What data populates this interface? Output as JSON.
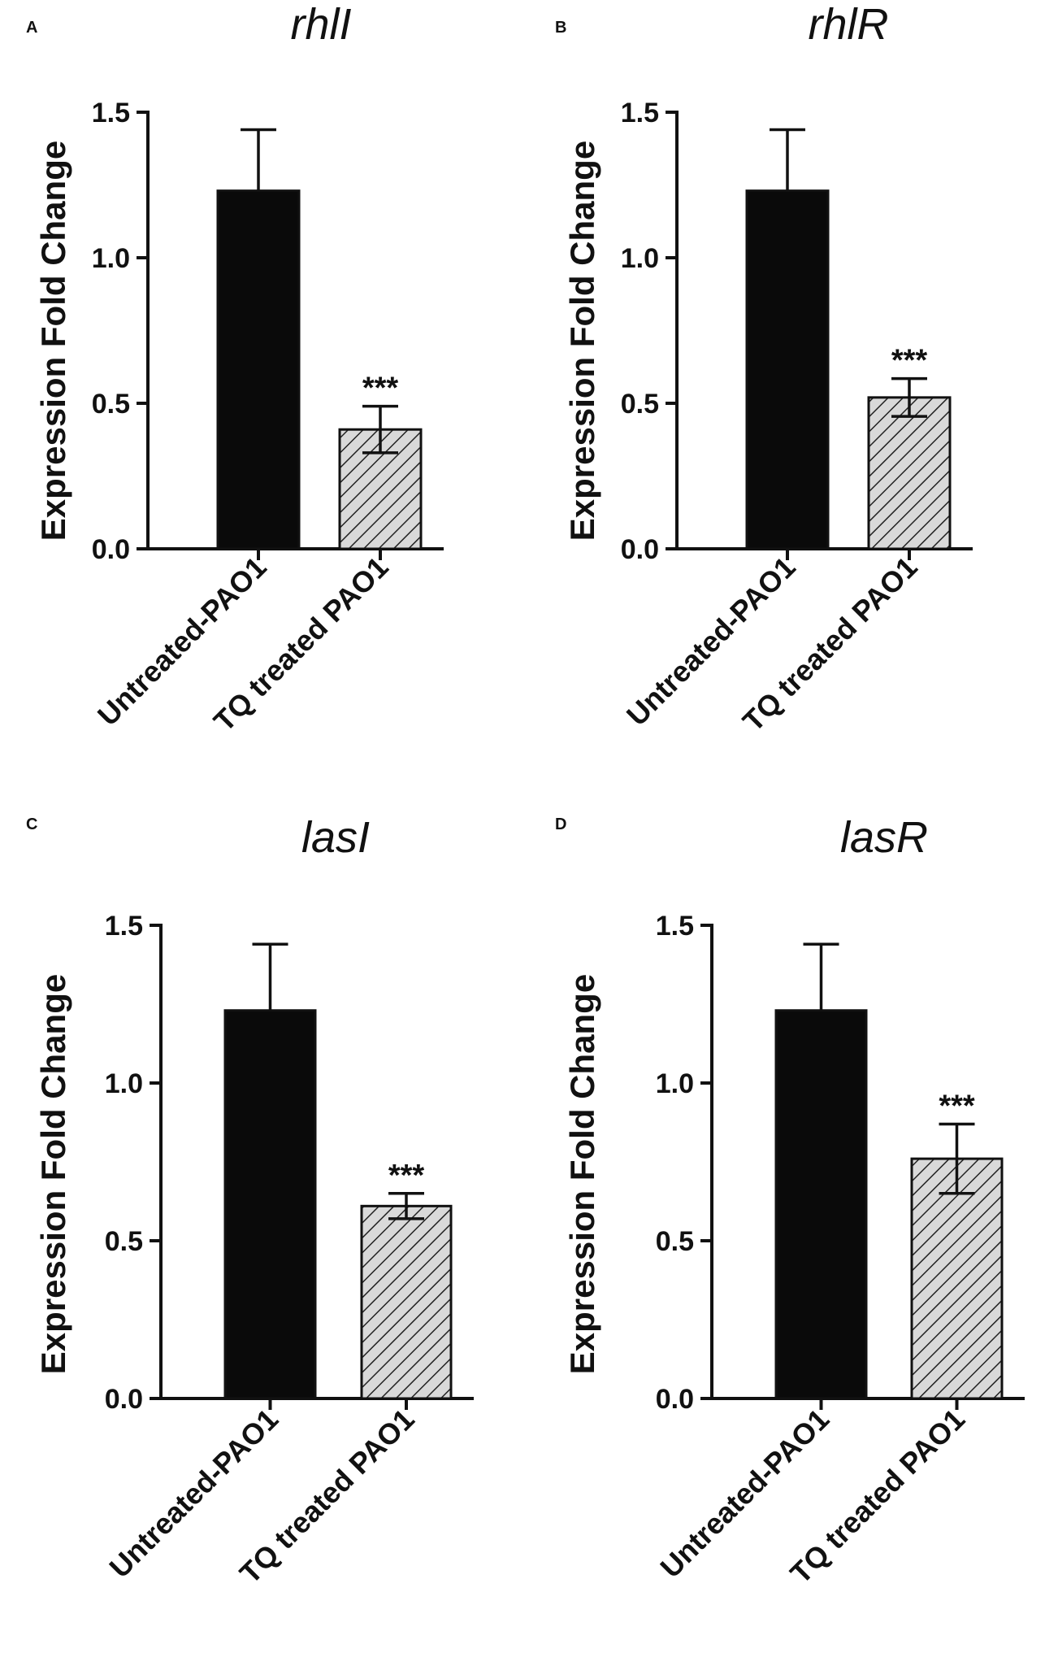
{
  "colors": {
    "untreated_fill": "#0a0a0a",
    "treated_fill": "#d9d9d9",
    "hatch": "#222222",
    "axis": "#111111"
  },
  "chart_data": [
    {
      "panel": "A",
      "type": "bar",
      "title": "rhlI",
      "ylabel": "Expression Fold Change",
      "xlabel": "",
      "categories": [
        "Untreated-PAO1",
        "TQ treated PAO1"
      ],
      "values": [
        1.23,
        0.41
      ],
      "errors": [
        0.21,
        0.08
      ],
      "significance": [
        "",
        "***"
      ],
      "ylim": [
        0,
        1.5
      ],
      "yticks": [
        "0.0",
        "0.5",
        "1.0",
        "1.5"
      ],
      "bar_styles": [
        "solid",
        "hatched"
      ]
    },
    {
      "panel": "B",
      "type": "bar",
      "title": "rhlR",
      "ylabel": "Expression Fold Change",
      "xlabel": "",
      "categories": [
        "Untreated-PAO1",
        "TQ treated PAO1"
      ],
      "values": [
        1.23,
        0.52
      ],
      "errors": [
        0.21,
        0.065
      ],
      "significance": [
        "",
        "***"
      ],
      "ylim": [
        0,
        1.5
      ],
      "yticks": [
        "0.0",
        "0.5",
        "1.0",
        "1.5"
      ],
      "bar_styles": [
        "solid",
        "hatched"
      ]
    },
    {
      "panel": "C",
      "type": "bar",
      "title": "lasI",
      "ylabel": "Expression Fold Change",
      "xlabel": "",
      "categories": [
        "Untreated-PAO1",
        "TQ treated PAO1"
      ],
      "values": [
        1.23,
        0.61
      ],
      "errors": [
        0.21,
        0.04
      ],
      "significance": [
        "",
        "***"
      ],
      "ylim": [
        0,
        1.5
      ],
      "yticks": [
        "0.0",
        "0.5",
        "1.0",
        "1.5"
      ],
      "bar_styles": [
        "solid",
        "hatched"
      ]
    },
    {
      "panel": "D",
      "type": "bar",
      "title": "lasR",
      "ylabel": "Expression Fold Change",
      "xlabel": "",
      "categories": [
        "Untreated-PAO1",
        "TQ treated PAO1"
      ],
      "values": [
        1.23,
        0.76
      ],
      "errors": [
        0.21,
        0.11
      ],
      "significance": [
        "",
        "***"
      ],
      "ylim": [
        0,
        1.5
      ],
      "yticks": [
        "0.0",
        "0.5",
        "1.0",
        "1.5"
      ],
      "bar_styles": [
        "solid",
        "hatched"
      ]
    }
  ]
}
